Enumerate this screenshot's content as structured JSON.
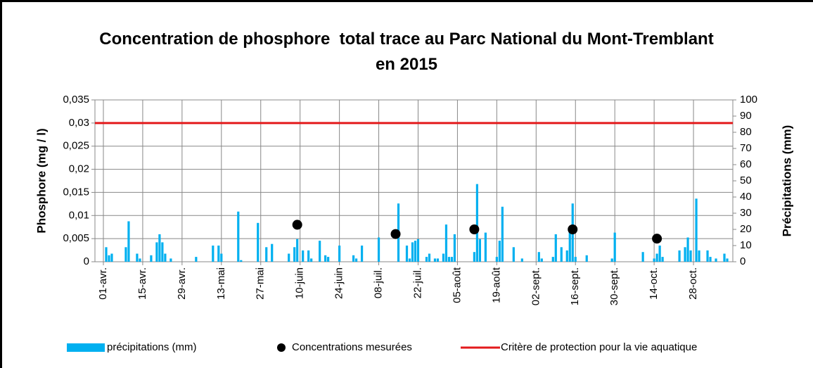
{
  "chart_data": {
    "type": "combo",
    "title": "Concentration de phosphore  total trace au Parc National du Mont-Tremblant en 2015",
    "y_label": "Phosphore (mg / l)",
    "y2_label": "Précipitations (mm)",
    "xlim": [
      88,
      315
    ],
    "xticks": [
      {
        "value": 91,
        "label": "01-avr."
      },
      {
        "value": 105,
        "label": "15-avr."
      },
      {
        "value": 119,
        "label": "29-avr."
      },
      {
        "value": 133,
        "label": "13-mai"
      },
      {
        "value": 147,
        "label": "27-mai"
      },
      {
        "value": 161,
        "label": "10-juin"
      },
      {
        "value": 175,
        "label": "24-juin"
      },
      {
        "value": 189,
        "label": "08-juil."
      },
      {
        "value": 203,
        "label": "22-juil."
      },
      {
        "value": 217,
        "label": "05-août"
      },
      {
        "value": 231,
        "label": "19-août"
      },
      {
        "value": 245,
        "label": "02-sept."
      },
      {
        "value": 259,
        "label": "16-sept."
      },
      {
        "value": 273,
        "label": "30-sept."
      },
      {
        "value": 287,
        "label": "14-oct."
      },
      {
        "value": 301,
        "label": "28-oct."
      }
    ],
    "ylim": [
      0,
      0.035
    ],
    "yticks": [
      0,
      {
        "value": 0.005,
        "label": "0,005"
      },
      {
        "value": 0.01,
        "label": "0,01"
      },
      {
        "value": 0.015,
        "label": "0,015"
      },
      {
        "value": 0.02,
        "label": "0,02"
      },
      {
        "value": 0.025,
        "label": "0,025"
      },
      {
        "value": 0.03,
        "label": "0,03"
      },
      {
        "value": 0.035,
        "label": "0,035"
      }
    ],
    "y2lim": [
      0,
      100
    ],
    "y2ticks": [
      0,
      10,
      20,
      30,
      40,
      50,
      60,
      70,
      80,
      90,
      100
    ],
    "grid": true,
    "legend": "bottom",
    "series": [
      {
        "name": "précipitations (mm)",
        "type": "bar",
        "axis": "y2",
        "color": "#00b0f0",
        "x": [
          92,
          93,
          94,
          99,
          100,
          103,
          104,
          108,
          110,
          111,
          112,
          113,
          115,
          124,
          130,
          132,
          133,
          139,
          140,
          146,
          149,
          151,
          157,
          159,
          160,
          162,
          164,
          165,
          168,
          170,
          171,
          175,
          180,
          181,
          183,
          189,
          196,
          199,
          200,
          201,
          202,
          203,
          206,
          207,
          209,
          210,
          212,
          213,
          214,
          215,
          216,
          223,
          224,
          225,
          227,
          231,
          232,
          233,
          237,
          240,
          246,
          247,
          251,
          252,
          254,
          256,
          257,
          258,
          259,
          263,
          272,
          273,
          283,
          287,
          288,
          289,
          290,
          296,
          298,
          299,
          300,
          302,
          303,
          306,
          307,
          309,
          312,
          313
        ],
        "values": [
          9,
          4,
          5,
          9,
          25,
          5,
          2,
          4,
          12,
          17,
          12,
          5,
          2,
          3,
          10,
          10,
          5,
          31,
          1,
          24,
          9,
          11,
          5,
          9,
          14,
          7,
          7,
          2,
          13,
          4,
          3,
          10,
          4,
          2,
          10,
          15,
          36,
          10,
          2,
          12,
          13,
          14,
          3,
          5,
          2,
          2,
          5,
          23,
          3,
          3,
          17,
          6,
          48,
          14,
          18,
          3,
          13,
          34,
          9,
          2,
          6,
          2,
          3,
          17,
          9,
          7,
          19,
          36,
          3,
          4,
          2,
          18,
          6,
          2,
          5,
          10,
          3,
          7,
          9,
          15,
          7,
          39,
          7,
          7,
          3,
          2,
          5,
          2
        ]
      },
      {
        "name": "Concentrations mesurées",
        "type": "scatter",
        "color": "#000000",
        "x": [
          160,
          195,
          223,
          258,
          288
        ],
        "values": [
          0.008,
          0.006,
          0.007,
          0.007,
          0.005
        ]
      },
      {
        "name": "Critère de protection pour la vie aquatique",
        "type": "line",
        "color": "#e31a1c",
        "x": [
          88,
          315
        ],
        "values": [
          0.03,
          0.03
        ]
      }
    ]
  }
}
